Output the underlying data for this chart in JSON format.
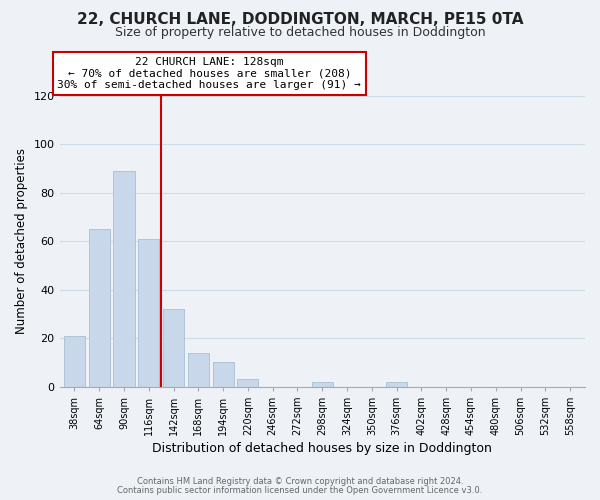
{
  "title": "22, CHURCH LANE, DODDINGTON, MARCH, PE15 0TA",
  "subtitle": "Size of property relative to detached houses in Doddington",
  "xlabel": "Distribution of detached houses by size in Doddington",
  "ylabel": "Number of detached properties",
  "bar_labels": [
    "38sqm",
    "64sqm",
    "90sqm",
    "116sqm",
    "142sqm",
    "168sqm",
    "194sqm",
    "220sqm",
    "246sqm",
    "272sqm",
    "298sqm",
    "324sqm",
    "350sqm",
    "376sqm",
    "402sqm",
    "428sqm",
    "454sqm",
    "480sqm",
    "506sqm",
    "532sqm",
    "558sqm"
  ],
  "bar_values": [
    21,
    65,
    89,
    61,
    32,
    14,
    10,
    3,
    0,
    0,
    2,
    0,
    0,
    2,
    0,
    0,
    0,
    0,
    0,
    0,
    0
  ],
  "bar_color": "#c8d8ea",
  "bar_edge_color": "#a8c0d0",
  "property_line_x": 3.5,
  "property_line_label": "22 CHURCH LANE: 128sqm",
  "annotation_line1": "← 70% of detached houses are smaller (208)",
  "annotation_line2": "30% of semi-detached houses are larger (91) →",
  "ylim": [
    0,
    120
  ],
  "yticks": [
    0,
    20,
    40,
    60,
    80,
    100,
    120
  ],
  "footnote1": "Contains HM Land Registry data © Crown copyright and database right 2024.",
  "footnote2": "Contains public sector information licensed under the Open Government Licence v3.0.",
  "annotation_box_color": "#ffffff",
  "annotation_box_edge": "#cc0000",
  "vline_color": "#cc0000",
  "grid_color": "#ccdde8",
  "background_color": "#eef2f7",
  "title_fontsize": 11,
  "subtitle_fontsize": 9
}
